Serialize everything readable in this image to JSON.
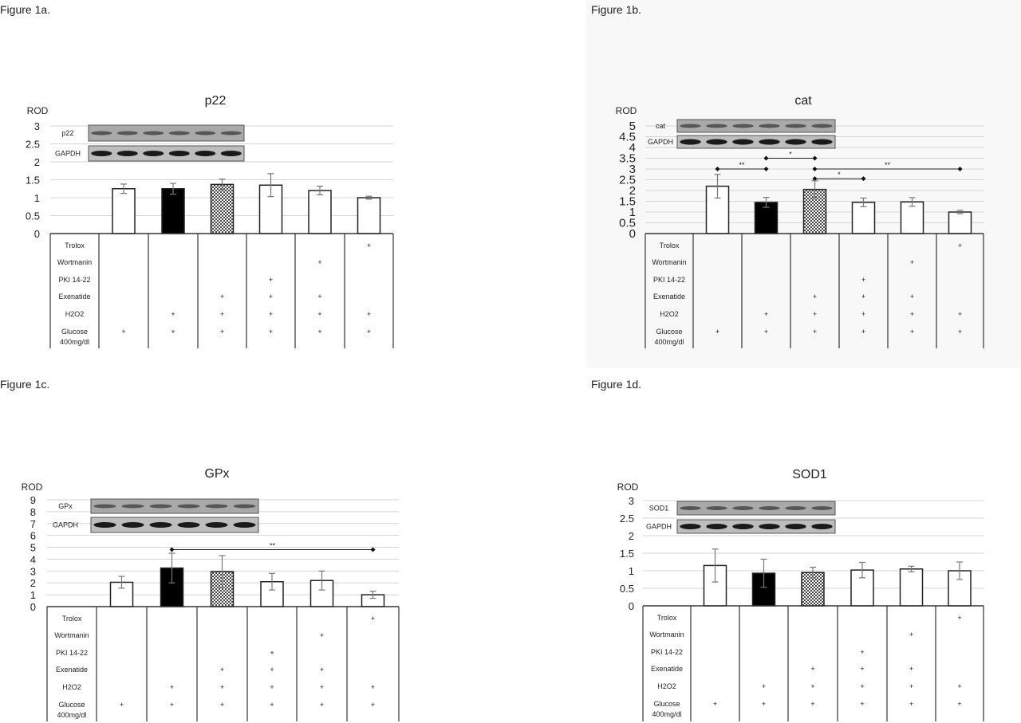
{
  "chart_data": [
    {
      "type": "bar",
      "panel_label": "Figure 1a.",
      "title": "p22",
      "ylabel": "ROD",
      "ylim": [
        0,
        3
      ],
      "ytick_step": 0.5,
      "grid": true,
      "blot_labels": [
        "p22",
        "GAPDH"
      ],
      "bar_fills": [
        "white",
        "black",
        "checkered",
        "white",
        "white",
        "white"
      ],
      "values": [
        1.25,
        1.25,
        1.37,
        1.35,
        1.2,
        1.0
      ],
      "errors": [
        0.13,
        0.15,
        0.15,
        0.32,
        0.12,
        0.04
      ],
      "significance": [],
      "conditions": [
        {
          "label": "Trolox",
          "marks": [
            0,
            0,
            0,
            0,
            0,
            1
          ]
        },
        {
          "label": "Wortmanin",
          "marks": [
            0,
            0,
            0,
            0,
            1,
            0
          ]
        },
        {
          "label": "PKI 14-22",
          "marks": [
            0,
            0,
            0,
            1,
            0,
            0
          ]
        },
        {
          "label": "Exenatide",
          "marks": [
            0,
            0,
            1,
            1,
            1,
            0
          ]
        },
        {
          "label": "H2O2",
          "marks": [
            0,
            1,
            1,
            1,
            1,
            1
          ]
        },
        {
          "label": "Glucose",
          "label2": "400mg/dl",
          "marks": [
            1,
            1,
            1,
            1,
            1,
            1
          ]
        }
      ],
      "mark_symbol": "+"
    },
    {
      "type": "bar",
      "panel_label": "Figure 1b.",
      "title": "cat",
      "ylabel": "ROD",
      "ylim": [
        0,
        5
      ],
      "ytick_step": 0.5,
      "grid": true,
      "blot_labels": [
        "cat",
        "GAPDH"
      ],
      "bar_fills": [
        "white",
        "black",
        "checkered",
        "white",
        "white",
        "white"
      ],
      "values": [
        2.2,
        1.45,
        2.05,
        1.45,
        1.47,
        1.0
      ],
      "errors": [
        0.55,
        0.23,
        0.4,
        0.2,
        0.2,
        0.08
      ],
      "significance": [
        {
          "from": 1,
          "to": 2,
          "level": 3.0,
          "label": "**"
        },
        {
          "from": 2,
          "to": 3,
          "level": 3.5,
          "label": "*"
        },
        {
          "from": 3,
          "to": 4,
          "level": 2.55,
          "label": "*"
        },
        {
          "from": 3,
          "to": 6,
          "level": 3.0,
          "label": "**"
        }
      ],
      "conditions": [
        {
          "label": "Trolox",
          "marks": [
            0,
            0,
            0,
            0,
            0,
            1
          ]
        },
        {
          "label": "Wortmanin",
          "marks": [
            0,
            0,
            0,
            0,
            1,
            0
          ]
        },
        {
          "label": "PKI 14-22",
          "marks": [
            0,
            0,
            0,
            1,
            0,
            0
          ]
        },
        {
          "label": "Exenatide",
          "marks": [
            0,
            0,
            1,
            1,
            1,
            0
          ]
        },
        {
          "label": "H2O2",
          "marks": [
            0,
            1,
            1,
            1,
            1,
            1
          ]
        },
        {
          "label": "Glucose",
          "label2": "400mg/dl",
          "marks": [
            1,
            1,
            1,
            1,
            1,
            1
          ]
        }
      ],
      "mark_symbol": "+"
    },
    {
      "type": "bar",
      "panel_label": "Figure 1c.",
      "title": "GPx",
      "ylabel": "ROD",
      "ylim": [
        0,
        9
      ],
      "ytick_step": 1,
      "grid": true,
      "blot_labels": [
        "GPx",
        "GAPDH"
      ],
      "bar_fills": [
        "white",
        "black",
        "checkered",
        "white",
        "white",
        "white"
      ],
      "values": [
        2.05,
        3.25,
        2.95,
        2.1,
        2.2,
        1.0
      ],
      "errors": [
        0.5,
        1.25,
        1.35,
        0.7,
        0.8,
        0.3
      ],
      "significance": [
        {
          "from": 2,
          "to": 6,
          "level": 4.8,
          "label": "**"
        }
      ],
      "conditions": [
        {
          "label": "Trolox",
          "marks": [
            0,
            0,
            0,
            0,
            0,
            1
          ]
        },
        {
          "label": "Wortmanin",
          "marks": [
            0,
            0,
            0,
            0,
            1,
            0
          ]
        },
        {
          "label": "PKI 14-22",
          "marks": [
            0,
            0,
            0,
            1,
            0,
            0
          ]
        },
        {
          "label": "Exenatide",
          "marks": [
            0,
            0,
            1,
            1,
            1,
            0
          ]
        },
        {
          "label": "H2O2",
          "marks": [
            0,
            1,
            1,
            1,
            1,
            1
          ]
        },
        {
          "label": "Glucose",
          "label2": "400mg/dl",
          "marks": [
            1,
            1,
            1,
            1,
            1,
            1
          ]
        }
      ],
      "mark_symbol": "+"
    },
    {
      "type": "bar",
      "panel_label": "Figure 1d.",
      "title": "SOD1",
      "ylabel": "ROD",
      "ylim": [
        0,
        3
      ],
      "ytick_step": 0.5,
      "grid": true,
      "blot_labels": [
        "SOD1",
        "GAPDH"
      ],
      "bar_fills": [
        "white",
        "black",
        "checkered",
        "white",
        "white",
        "white"
      ],
      "values": [
        1.15,
        0.93,
        0.95,
        1.02,
        1.05,
        1.0
      ],
      "errors": [
        0.47,
        0.4,
        0.15,
        0.22,
        0.08,
        0.25
      ],
      "significance": [],
      "conditions": [
        {
          "label": "Trolox",
          "marks": [
            0,
            0,
            0,
            0,
            0,
            1
          ]
        },
        {
          "label": "Wortmanin",
          "marks": [
            0,
            0,
            0,
            0,
            1,
            0
          ]
        },
        {
          "label": "PKI 14-22",
          "marks": [
            0,
            0,
            0,
            1,
            0,
            0
          ]
        },
        {
          "label": "Exenatide",
          "marks": [
            0,
            0,
            1,
            1,
            1,
            0
          ]
        },
        {
          "label": "H2O2",
          "marks": [
            0,
            1,
            1,
            1,
            1,
            1
          ]
        },
        {
          "label": "Glucose",
          "label2": "400mg/dl",
          "marks": [
            1,
            1,
            1,
            1,
            1,
            1
          ]
        }
      ],
      "mark_symbol": "+"
    }
  ]
}
